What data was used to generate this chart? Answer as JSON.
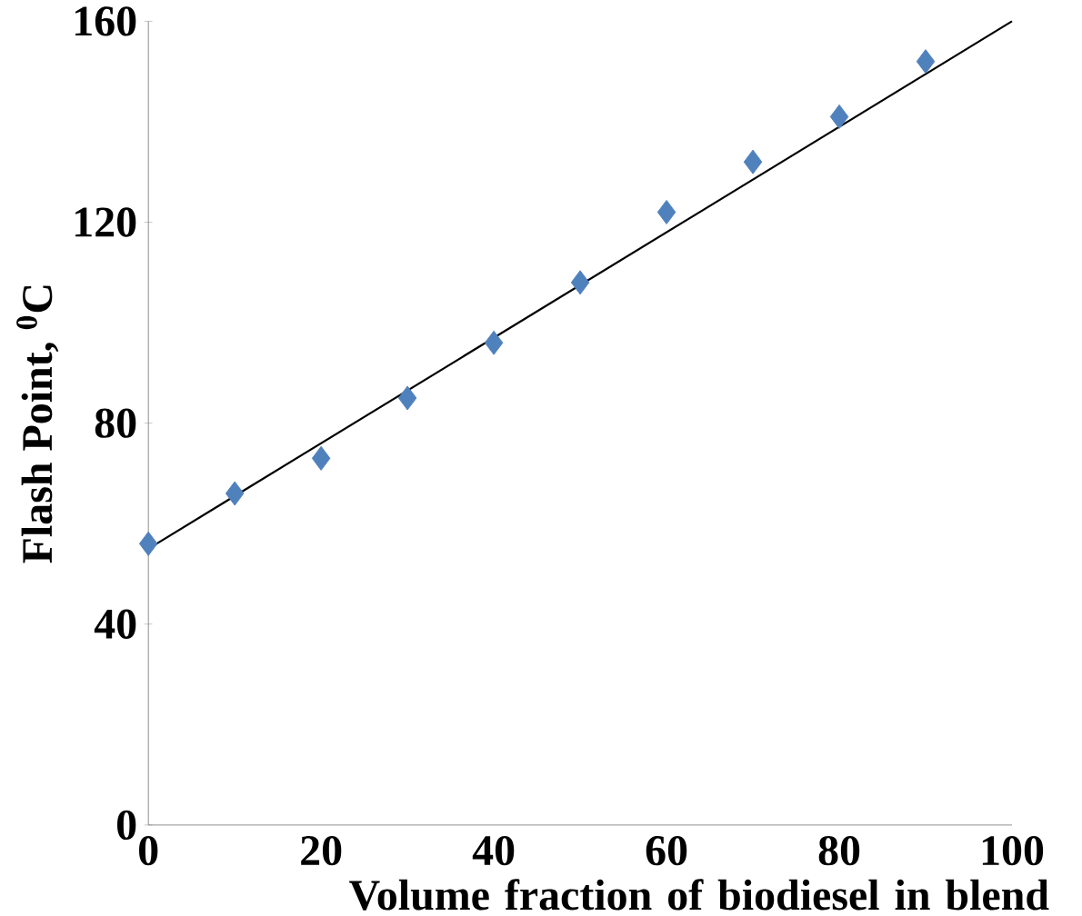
{
  "chart_data": {
    "type": "scatter",
    "xlabel": "Volume fraction of  biodiesel in blend",
    "ylabel": "Flash Point, $^{0}$C",
    "xlim": [
      0,
      100
    ],
    "ylim": [
      0,
      160
    ],
    "xticks": [
      0,
      20,
      40,
      60,
      80,
      100
    ],
    "yticks": [
      0,
      40,
      80,
      120,
      160
    ],
    "grid": false,
    "series": [
      {
        "marker": "diamond",
        "color": "#4f81bd",
        "x": [
          0,
          10,
          20,
          30,
          40,
          50,
          60,
          70,
          80,
          90
        ],
        "values": [
          56,
          66,
          73,
          85,
          96,
          108,
          122,
          132,
          141,
          152
        ]
      },
      {
        "type": "line",
        "marker": "none",
        "color": "#000000",
        "x": [
          0,
          100
        ],
        "values": [
          55,
          160
        ]
      }
    ]
  }
}
